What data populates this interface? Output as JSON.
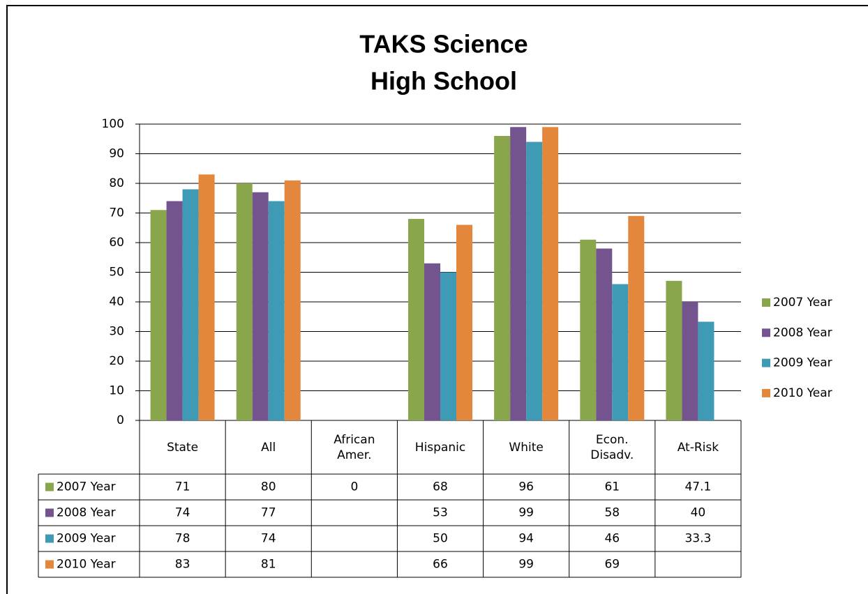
{
  "chart_data": {
    "type": "bar",
    "title": "TAKS Science",
    "subtitle": "High School",
    "categories": [
      "State",
      "All",
      "African Amer.",
      "Hispanic",
      "White",
      "Econ. Disadv.",
      "At-Risk"
    ],
    "series": [
      {
        "name": "2007 Year",
        "color": "#8aa64d",
        "values": [
          71,
          80,
          0,
          68,
          96,
          61,
          47.1
        ]
      },
      {
        "name": "2008 Year",
        "color": "#74548f",
        "values": [
          74,
          77,
          null,
          53,
          99,
          58,
          40
        ]
      },
      {
        "name": "2009 Year",
        "color": "#3f9bb5",
        "values": [
          78,
          74,
          null,
          50,
          94,
          46,
          33.3
        ]
      },
      {
        "name": "2010 Year",
        "color": "#e2873c",
        "values": [
          83,
          81,
          null,
          66,
          99,
          69,
          null
        ]
      }
    ],
    "ylim": [
      0,
      100
    ],
    "yticks": [
      0,
      10,
      20,
      30,
      40,
      50,
      60,
      70,
      80,
      90,
      100
    ],
    "grid": true,
    "legend": "right"
  }
}
